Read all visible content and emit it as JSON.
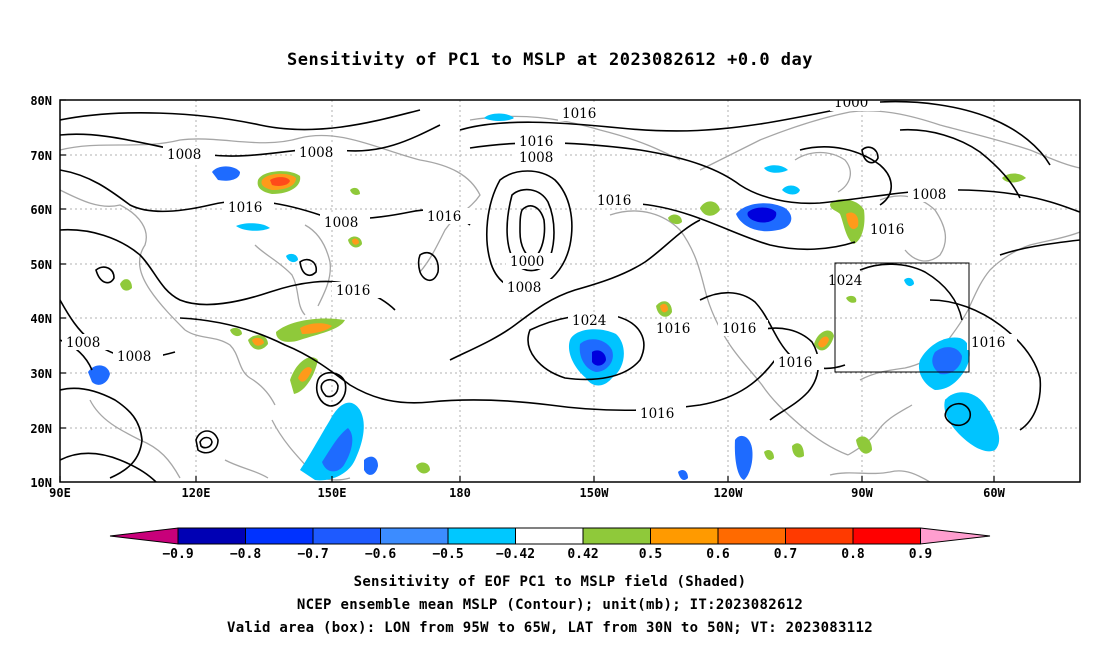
{
  "title": "Sensitivity of PC1 to MSLP at 2023082612 +0.0 day",
  "map": {
    "lat_labels": [
      "80N",
      "70N",
      "60N",
      "50N",
      "40N",
      "30N",
      "20N",
      "10N"
    ],
    "lon_labels": [
      "90E",
      "120E",
      "150E",
      "180",
      "150W",
      "120W",
      "90W",
      "60W"
    ],
    "contour_labels": [
      "1016",
      "1008",
      "1008",
      "1016",
      "1016",
      "1008",
      "1008",
      "1000",
      "1016",
      "1008",
      "1000",
      "1016",
      "1016",
      "1008",
      "1016",
      "1008",
      "1008",
      "1024",
      "1016",
      "1016",
      "1024",
      "1016",
      "1016",
      "1016"
    ],
    "colors": {
      "coast": "#a6a6a6",
      "contour": "#000000",
      "grid": "#b0b0b0",
      "neg_strong": "#0000dd",
      "neg_mid": "#1e6bff",
      "neg_weak": "#00c4ff",
      "pos_weak": "#8fc93a",
      "pos_mid": "#ff9a1a",
      "pos_strong": "#ff4a1a"
    }
  },
  "colorbar": {
    "labels": [
      "−0.9",
      "−0.8",
      "−0.7",
      "−0.6",
      "−0.5",
      "−0.42",
      "0.42",
      "0.5",
      "0.6",
      "0.7",
      "0.8",
      "0.9"
    ],
    "colors": [
      "#c8007a",
      "#0000b4",
      "#0032ff",
      "#1e5aff",
      "#3c8cff",
      "#00c8ff",
      "#ffffff",
      "#8fc93a",
      "#ff9a00",
      "#ff6a00",
      "#ff3a00",
      "#ff0000",
      "#ff9ecf"
    ]
  },
  "captions": {
    "line1": "Sensitivity of EOF PC1 to MSLP field (Shaded)",
    "line2": "NCEP ensemble mean MSLP (Contour); unit(mb); IT:2023082612",
    "line3": "Valid area (box): LON from 95W to 65W, LAT from 30N to 50N; VT: 2023083112"
  }
}
